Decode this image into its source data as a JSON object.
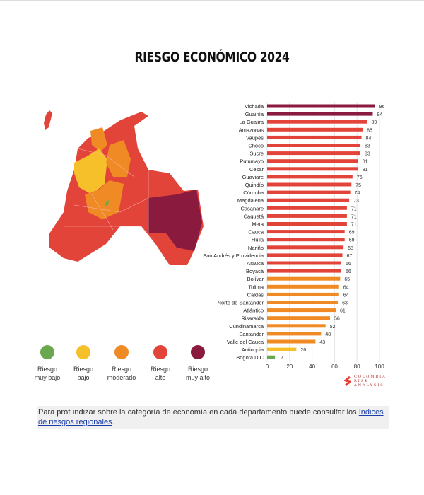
{
  "title": "RIESGO ECONÓMICO 2024",
  "legend": [
    {
      "label1": "Riesgo",
      "label2": "muy bajo",
      "color": "#6aa84f"
    },
    {
      "label1": "Riesgo",
      "label2": "bajo",
      "color": "#f5c02a"
    },
    {
      "label1": "Riesgo",
      "label2": "moderado",
      "color": "#f08a24"
    },
    {
      "label1": "Riesgo",
      "label2": "alto",
      "color": "#e2443a"
    },
    {
      "label1": "Riesgo",
      "label2": "muy alto",
      "color": "#8b1a3f"
    }
  ],
  "chart_data": {
    "type": "bar",
    "orientation": "horizontal",
    "title": "RIESGO ECONÓMICO 2024",
    "xlim": [
      0,
      100
    ],
    "xticks": [
      0,
      20,
      40,
      60,
      80,
      100
    ],
    "grid": true,
    "categories": [
      "Vichada",
      "Guainía",
      "La Guajira",
      "Amazonas",
      "Vaupés",
      "Chocó",
      "Sucre",
      "Putumayo",
      "Cesar",
      "Guaviare",
      "Quindío",
      "Córdoba",
      "Magdalena",
      "Casanare",
      "Caquetá",
      "Meta",
      "Cauca",
      "Huila",
      "Nariño",
      "San Andrés y Providencia",
      "Arauca",
      "Boyacá",
      "Bolívar",
      "Tolima",
      "Caldas",
      "Norte de Santander",
      "Atlántico",
      "Risaralda",
      "Cundinamarca",
      "Santander",
      "Valle del Cauca",
      "Antioquia",
      "Bogotá D.C"
    ],
    "values": [
      96,
      94,
      89,
      85,
      84,
      83,
      83,
      81,
      81,
      76,
      75,
      74,
      73,
      71,
      71,
      71,
      69,
      69,
      68,
      67,
      66,
      66,
      65,
      64,
      64,
      63,
      61,
      56,
      52,
      48,
      43,
      26,
      7
    ]
  },
  "logo": {
    "line1": "COLOMBIA",
    "line2": "RISK",
    "line3": "ANALYSIS"
  },
  "footer": {
    "text": "Para profundizar sobre la categoría de economía en cada departamento puede consultar los ",
    "link": "índices de riesgos regionales",
    "end": "."
  }
}
